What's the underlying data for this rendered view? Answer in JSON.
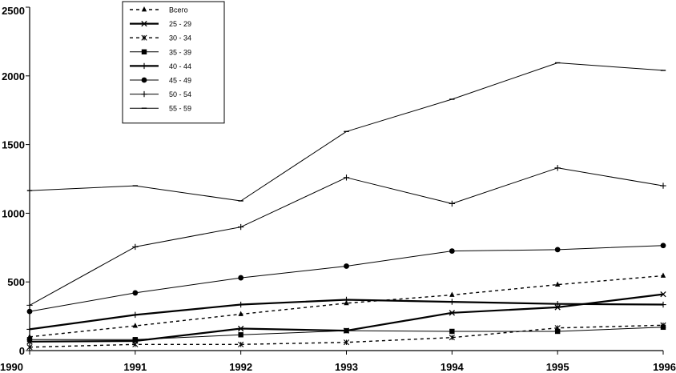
{
  "chart_data": {
    "type": "line",
    "x": [
      1990,
      1991,
      1992,
      1993,
      1994,
      1995,
      1996
    ],
    "ylim": [
      0,
      2500
    ],
    "yticks": [
      0,
      500,
      1000,
      1500,
      2000,
      2500
    ],
    "xticks": [
      1990,
      1991,
      1992,
      1993,
      1994,
      1995,
      1996
    ],
    "legend_position": "top-left",
    "grid": false,
    "series": [
      {
        "name": "Всего",
        "style": "dashed",
        "marker": "triangle",
        "width": 1.4,
        "values": [
          100,
          180,
          265,
          345,
          405,
          480,
          545
        ]
      },
      {
        "name": "25 - 29",
        "style": "solid",
        "marker": "x",
        "width": 2.2,
        "values": [
          65,
          70,
          160,
          145,
          275,
          315,
          410
        ]
      },
      {
        "name": "30 - 34",
        "style": "dashed",
        "marker": "asterisk",
        "width": 1.4,
        "values": [
          25,
          45,
          45,
          60,
          95,
          165,
          185
        ]
      },
      {
        "name": "35 - 39",
        "style": "solid",
        "marker": "square",
        "width": 1.0,
        "values": [
          80,
          80,
          115,
          145,
          140,
          140,
          170
        ]
      },
      {
        "name": "40 - 44",
        "style": "solid",
        "marker": "plus",
        "width": 2.2,
        "values": [
          155,
          260,
          335,
          370,
          355,
          340,
          335
        ]
      },
      {
        "name": "45 - 49",
        "style": "solid",
        "marker": "circle",
        "width": 1.0,
        "values": [
          285,
          420,
          530,
          615,
          725,
          735,
          765
        ]
      },
      {
        "name": "50 - 54",
        "style": "solid",
        "marker": "plus",
        "width": 1.0,
        "values": [
          330,
          755,
          900,
          1260,
          1070,
          1330,
          1200
        ]
      },
      {
        "name": "55 - 59",
        "style": "solid",
        "marker": "dash",
        "width": 1.0,
        "values": [
          1165,
          1200,
          1090,
          1595,
          1830,
          2095,
          2040
        ]
      }
    ]
  }
}
